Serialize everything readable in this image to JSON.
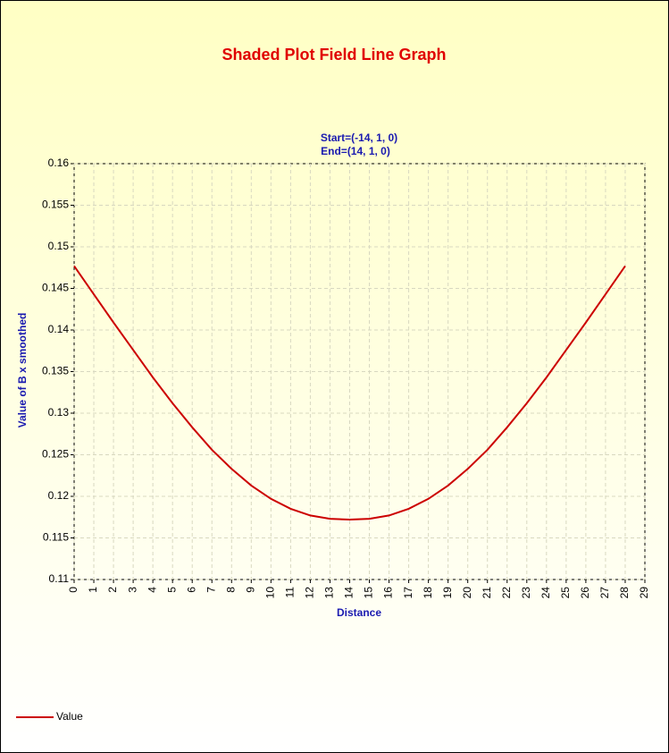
{
  "chart_data": {
    "type": "line",
    "title": "Shaded Plot Field Line Graph",
    "subtitle": [
      "Start=(-14, 1, 0)",
      "End=(14, 1, 0)"
    ],
    "x_label": "Distance",
    "y_label": "Value of B x smoothed",
    "x": [
      0,
      1,
      2,
      3,
      4,
      5,
      6,
      7,
      8,
      9,
      10,
      11,
      12,
      13,
      14,
      15,
      16,
      17,
      18,
      19,
      20,
      21,
      22,
      23,
      24,
      25,
      26,
      27,
      28
    ],
    "series": [
      {
        "name": "Value",
        "color": "#cc0000",
        "values": [
          0.1477,
          0.1443,
          0.1409,
          0.1376,
          0.1343,
          0.1312,
          0.1283,
          0.1256,
          0.1233,
          0.1213,
          0.1197,
          0.1185,
          0.1177,
          0.1173,
          0.1172,
          0.1173,
          0.1177,
          0.1185,
          0.1197,
          0.1213,
          0.1233,
          0.1256,
          0.1283,
          0.1312,
          0.1343,
          0.1376,
          0.1409,
          0.1443,
          0.1477
        ]
      }
    ],
    "xlim": [
      0,
      29
    ],
    "xticks": [
      0,
      1,
      2,
      3,
      4,
      5,
      6,
      7,
      8,
      9,
      10,
      11,
      12,
      13,
      14,
      15,
      16,
      17,
      18,
      19,
      20,
      21,
      22,
      23,
      24,
      25,
      26,
      27,
      28,
      29
    ],
    "ylim": [
      0.11,
      0.16
    ],
    "yticks": [
      0.11,
      0.115,
      0.12,
      0.125,
      0.13,
      0.135,
      0.14,
      0.145,
      0.15,
      0.155,
      0.16
    ],
    "grid": true,
    "legend": "bottom-left"
  }
}
